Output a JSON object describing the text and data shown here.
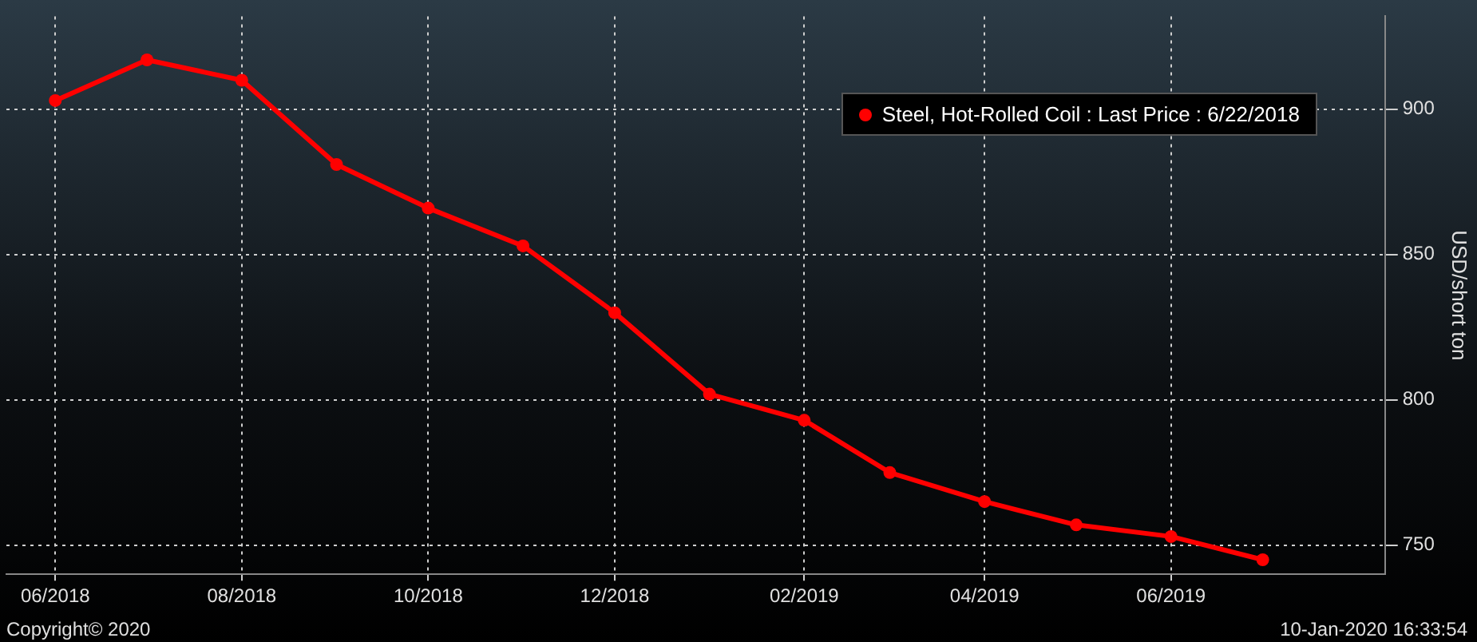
{
  "chart_data": {
    "type": "line",
    "ylabel": "USD/short ton",
    "x": [
      "2018-06",
      "2018-07",
      "2018-08",
      "2018-09",
      "2018-10",
      "2018-11",
      "2018-12",
      "2019-01",
      "2019-02",
      "2019-03",
      "2019-04",
      "2019-05",
      "2019-06",
      "2019-07"
    ],
    "series": [
      {
        "name": "Steel, Hot-Rolled Coil : Last Price : 6/22/2018",
        "color": "#ff0000",
        "values": [
          903,
          917,
          910,
          881,
          866,
          853,
          830,
          802,
          793,
          775,
          765,
          757,
          753,
          745
        ]
      }
    ],
    "xlim": [
      "2018-05-16",
      "2019-08-10"
    ],
    "xticks": [
      {
        "value": "2018-06",
        "label": "06/2018"
      },
      {
        "value": "2018-08",
        "label": "08/2018"
      },
      {
        "value": "2018-10",
        "label": "10/2018"
      },
      {
        "value": "2018-12",
        "label": "12/2018"
      },
      {
        "value": "2019-02",
        "label": "02/2019"
      },
      {
        "value": "2019-04",
        "label": "04/2019"
      },
      {
        "value": "2019-06",
        "label": "06/2019"
      }
    ],
    "ylim": [
      740,
      932
    ],
    "yticks": [
      750,
      800,
      850,
      900
    ],
    "grid": true,
    "legend": "top right",
    "marker": "circle",
    "line_style": "solid",
    "annotations": [
      "Copyright© 2020",
      "10-Jan-2020 16:33:54"
    ]
  }
}
